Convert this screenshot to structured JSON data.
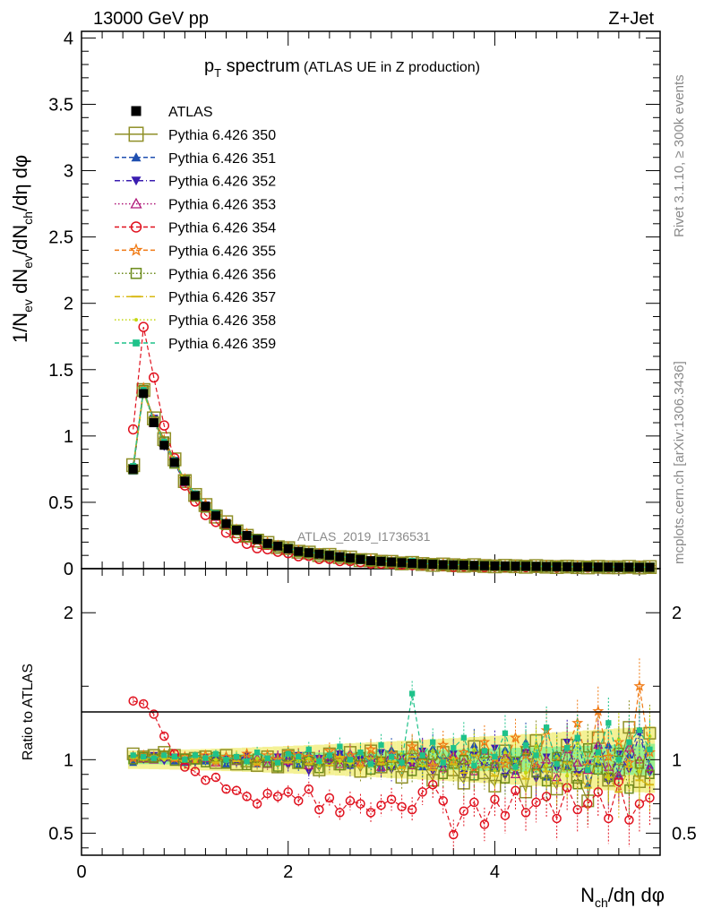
{
  "header": {
    "left": "13000 GeV pp",
    "right": "Z+Jet"
  },
  "side_labels": {
    "rivet": "Rivet 3.1.10, ≥ 300k events",
    "source": "mcplots.cern.ch [arXiv:1306.3436]"
  },
  "watermark": "ATLAS_2019_I1736531",
  "chart_data": {
    "type": "scatter",
    "title_main": "p",
    "title_sub": "T",
    "title_word": " spectrum",
    "title_note": "(ATLAS UE in Z production)",
    "ylabel": "1/N_ev dN_ev/dN_ch/dη dφ",
    "ratio_ylabel": "Ratio to ATLAS",
    "xlabel_main": "N",
    "xlabel_sub": "ch",
    "xlabel_rest": "/dη dφ",
    "xlim": [
      0,
      5.6
    ],
    "ylim": [
      0,
      4.05
    ],
    "ratio_ylim": [
      0.35,
      2.3
    ],
    "x_ticks": [
      "0",
      "2",
      "4"
    ],
    "y_ticks": [
      "0",
      "0.5",
      "1",
      "1.5",
      "2",
      "2.5",
      "3",
      "3.5",
      "4"
    ],
    "ratio_ticks": [
      "0.5",
      "1",
      "2"
    ],
    "x": [
      0.5,
      0.6,
      0.7,
      0.8,
      0.9,
      1.0,
      1.1,
      1.2,
      1.3,
      1.4,
      1.5,
      1.6,
      1.7,
      1.8,
      1.9,
      2.0,
      2.1,
      2.2,
      2.3,
      2.4,
      2.5,
      2.6,
      2.7,
      2.8,
      2.9,
      3.0,
      3.1,
      3.2,
      3.3,
      3.4,
      3.5,
      3.6,
      3.7,
      3.8,
      3.9,
      4.0,
      4.1,
      4.2,
      4.3,
      4.4,
      4.5,
      4.6,
      4.7,
      4.8,
      4.9,
      5.0,
      5.1,
      5.2,
      5.3,
      5.4,
      5.5
    ],
    "data_values": [
      0.75,
      1.32,
      1.1,
      0.93,
      0.8,
      0.66,
      0.55,
      0.47,
      0.4,
      0.34,
      0.29,
      0.25,
      0.22,
      0.19,
      0.17,
      0.15,
      0.13,
      0.12,
      0.11,
      0.1,
      0.09,
      0.08,
      0.07,
      0.06,
      0.055,
      0.05,
      0.045,
      0.04,
      0.036,
      0.033,
      0.03,
      0.028,
      0.026,
      0.024,
      0.022,
      0.021,
      0.02,
      0.019,
      0.018,
      0.017,
      0.016,
      0.015,
      0.014,
      0.013,
      0.013,
      0.012,
      0.012,
      0.011,
      0.011,
      0.01,
      0.01
    ],
    "series": [
      {
        "name": "ATLAS",
        "color": "#000000",
        "marker": "square-filled",
        "style": "none",
        "ratio": [
          1,
          1,
          1,
          1,
          1,
          1,
          1,
          1,
          1,
          1,
          1,
          1,
          1,
          1,
          1,
          1,
          1,
          1,
          1,
          1,
          1,
          1,
          1,
          1,
          1,
          1,
          1,
          1,
          1,
          1,
          1,
          1,
          1,
          1,
          1,
          1,
          1,
          1,
          1,
          1,
          1,
          1,
          1,
          1,
          1,
          1,
          1,
          1,
          1,
          1,
          1
        ]
      },
      {
        "name": "Pythia 6.426 350",
        "color": "#8f8f27",
        "marker": "square-open-large",
        "style": "solid",
        "ratio": [
          1.04,
          1.02,
          1.03,
          1.05,
          1.03,
          1.0,
          1.01,
          1.02,
          0.98,
          1.03,
          0.97,
          0.99,
          0.96,
          1.02,
          0.95,
          1.03,
          0.98,
          1.01,
          0.93,
          1.04,
          0.97,
          1.05,
          0.92,
          1.06,
          0.95,
          1.02,
          0.88,
          1.08,
          0.97,
          0.86,
          1.05,
          0.93,
          0.84,
          1.09,
          0.91,
          0.82,
          1.06,
          0.95,
          0.78,
          1.13,
          0.91,
          0.8,
          1.1,
          0.88,
          0.72,
          1.15,
          0.86,
          0.93,
          1.22,
          0.85,
          1.18
        ]
      },
      {
        "name": "Pythia 6.426 351",
        "color": "#1f4fb0",
        "marker": "triangle-up-filled",
        "style": "dashed",
        "ratio": [
          0.98,
          1.01,
          1.02,
          1.01,
          0.99,
          0.98,
          1.01,
          0.99,
          1.02,
          0.97,
          1.0,
          1.03,
          0.97,
          1.01,
          0.99,
          1.02,
          0.96,
          1.04,
          0.98,
          1.0,
          1.05,
          0.96,
          1.03,
          0.99,
          0.94,
          1.07,
          0.98,
          1.02,
          0.95,
          1.08,
          0.97,
          1.03,
          0.93,
          1.1,
          0.98,
          0.95,
          1.07,
          0.92,
          1.12,
          0.97,
          0.88,
          1.04,
          0.95,
          1.15,
          0.83,
          0.98,
          1.1,
          0.9,
          1.03,
          1.2,
          0.96
        ]
      },
      {
        "name": "Pythia 6.426 352",
        "color": "#3a1db0",
        "marker": "triangle-down-filled",
        "style": "dashdot",
        "ratio": [
          1.01,
          1.0,
          1.03,
          0.99,
          1.02,
          1.0,
          0.98,
          1.02,
          0.99,
          1.01,
          0.98,
          1.03,
          0.97,
          1.0,
          1.02,
          0.96,
          1.03,
          0.92,
          1.01,
          0.98,
          1.04,
          0.95,
          1.0,
          0.97,
          1.05,
          0.93,
          1.02,
          0.96,
          1.06,
          0.92,
          0.99,
          1.04,
          0.9,
          1.03,
          0.96,
          1.08,
          0.89,
          0.99,
          1.05,
          0.87,
          1.02,
          0.94,
          1.12,
          0.9,
          0.97,
          1.08,
          0.85,
          1.04,
          0.93,
          1.18,
          0.91
        ]
      },
      {
        "name": "Pythia 6.426 353",
        "color": "#b0197a",
        "marker": "triangle-up-open",
        "style": "dotted",
        "ratio": [
          1.02,
          1.01,
          1.0,
          1.02,
          1.01,
          0.99,
          1.0,
          1.01,
          0.98,
          1.02,
          0.99,
          1.0,
          1.01,
          0.97,
          1.02,
          0.99,
          1.03,
          0.96,
          1.01,
          1.0,
          0.97,
          1.04,
          0.98,
          1.01,
          0.95,
          1.03,
          1.0,
          0.96,
          1.05,
          0.98,
          0.94,
          1.03,
          0.99,
          0.92,
          1.06,
          0.97,
          1.02,
          0.9,
          1.05,
          0.96,
          1.0,
          0.88,
          1.07,
          0.98,
          0.93,
          1.1,
          0.95,
          0.89,
          1.08,
          1.0,
          0.94
        ]
      },
      {
        "name": "Pythia 6.426 354",
        "color": "#e0111e",
        "marker": "circle-open",
        "style": "dashed",
        "ratio": [
          1.4,
          1.38,
          1.31,
          1.16,
          1.04,
          0.95,
          0.92,
          0.86,
          0.88,
          0.8,
          0.79,
          0.75,
          0.7,
          0.77,
          0.75,
          0.78,
          0.72,
          0.8,
          0.66,
          0.74,
          0.64,
          0.72,
          0.7,
          0.64,
          0.69,
          0.73,
          0.68,
          0.66,
          0.78,
          0.83,
          0.72,
          0.49,
          0.65,
          0.71,
          0.56,
          0.73,
          0.62,
          0.79,
          0.64,
          0.71,
          0.75,
          0.6,
          0.81,
          0.66,
          0.7,
          0.78,
          0.6,
          0.85,
          0.59,
          0.7,
          0.74
        ]
      },
      {
        "name": "Pythia 6.426 355",
        "color": "#f07a14",
        "marker": "star-open",
        "style": "dashed",
        "ratio": [
          1.01,
          1.03,
          1.02,
          1.04,
          1.01,
          1.02,
          1.0,
          1.03,
          0.99,
          1.02,
          1.01,
          1.04,
          0.98,
          1.03,
          1.0,
          1.05,
          1.03,
          1.02,
          0.99,
          1.06,
          1.01,
          1.03,
          0.98,
          1.07,
          1.0,
          1.04,
          0.97,
          1.09,
          1.02,
          0.96,
          1.1,
          1.0,
          1.05,
          0.94,
          1.12,
          1.01,
          0.97,
          1.15,
          1.03,
          0.95,
          1.2,
          0.99,
          1.08,
          1.25,
          0.96,
          1.33,
          1.02,
          1.12,
          0.98,
          1.5,
          1.05
        ]
      },
      {
        "name": "Pythia 6.426 356",
        "color": "#6b8a1a",
        "marker": "square-open",
        "style": "dotted",
        "ratio": [
          1.0,
          1.02,
          1.01,
          1.03,
          0.99,
          1.01,
          1.0,
          0.98,
          1.02,
          0.97,
          1.0,
          0.96,
          1.01,
          0.98,
          0.95,
          1.02,
          0.97,
          0.99,
          0.94,
          1.01,
          0.96,
          0.98,
          1.02,
          0.93,
          0.99,
          0.96,
          1.01,
          0.92,
          0.98,
          1.03,
          0.9,
          0.97,
          1.0,
          0.89,
          1.04,
          0.95,
          0.87,
          0.99,
          1.06,
          0.91,
          0.85,
          1.02,
          0.96,
          0.83,
          1.08,
          0.93,
          0.88,
          1.05,
          0.8,
          0.97,
          0.9
        ]
      },
      {
        "name": "Pythia 6.426 357",
        "color": "#d8b812",
        "marker": "dash-mark",
        "style": "dashdot",
        "ratio": [
          1.01,
          1.0,
          1.02,
          1.01,
          1.0,
          0.99,
          1.01,
          1.0,
          0.98,
          1.01,
          0.99,
          1.0,
          0.97,
          1.01,
          0.99,
          0.98,
          1.02,
          0.97,
          1.0,
          0.96,
          1.02,
          0.98,
          0.95,
          1.01,
          0.97,
          0.99,
          0.94,
          1.02,
          0.96,
          0.93,
          1.0,
          0.97,
          0.91,
          1.03,
          0.95,
          0.89,
          1.0,
          0.93,
          0.87,
          1.04,
          0.92,
          0.84,
          0.98,
          0.9,
          0.81,
          1.02,
          0.88,
          0.78,
          0.95,
          0.86,
          0.83
        ]
      },
      {
        "name": "Pythia 6.426 358",
        "color": "#c4d810",
        "marker": "dot-small",
        "style": "dotted",
        "ratio": [
          1.02,
          1.01,
          1.01,
          1.0,
          1.02,
          1.01,
          0.99,
          1.02,
          1.0,
          0.99,
          1.03,
          0.98,
          1.01,
          1.0,
          0.97,
          1.03,
          0.99,
          1.01,
          0.96,
          1.03,
          0.99,
          0.97,
          1.04,
          0.98,
          1.0,
          0.95,
          1.04,
          0.99,
          0.96,
          1.06,
          0.97,
          1.01,
          0.94,
          1.07,
          0.98,
          0.93,
          1.05,
          0.99,
          0.91,
          1.09,
          0.96,
          1.02,
          0.89,
          1.11,
          0.95,
          0.99,
          0.87,
          1.14,
          0.97,
          0.92,
          1.16
        ]
      },
      {
        "name": "Pythia 6.426 359",
        "color": "#1fc28a",
        "marker": "square-filled-small",
        "style": "dashed",
        "ratio": [
          1.03,
          1.02,
          1.01,
          1.03,
          1.02,
          1.0,
          1.03,
          1.01,
          1.04,
          1.0,
          1.02,
          0.99,
          1.05,
          1.01,
          0.98,
          1.04,
          1.02,
          1.07,
          0.99,
          1.03,
          1.09,
          1.0,
          1.05,
          0.97,
          1.1,
          1.02,
          0.98,
          1.45,
          1.03,
          1.12,
          0.98,
          1.08,
          1.15,
          0.96,
          1.06,
          1.02,
          1.18,
          0.95,
          1.1,
          1.03,
          1.22,
          0.97,
          1.08,
          1.15,
          0.93,
          1.05,
          1.25,
          1.0,
          1.12,
          1.2,
          1.07
        ]
      }
    ]
  }
}
